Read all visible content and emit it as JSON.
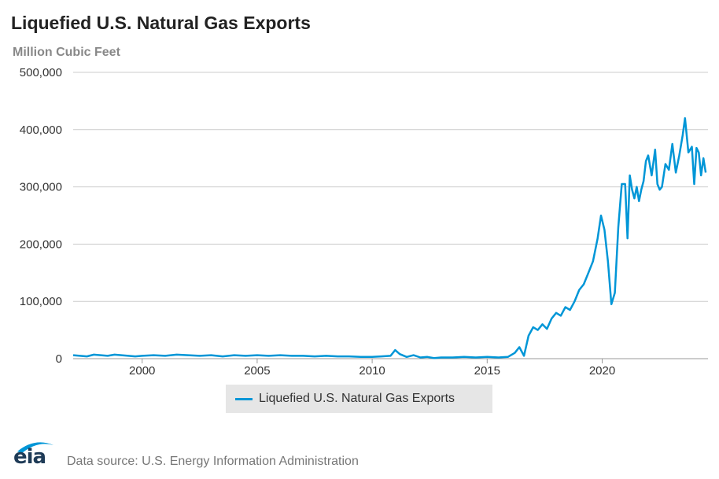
{
  "header": {
    "title": "Liquefied U.S. Natural Gas Exports",
    "subtitle": "Million Cubic Feet"
  },
  "legend": {
    "label": "Liquefied U.S. Natural Gas Exports"
  },
  "footer": {
    "logo_text": "eia",
    "source": "Data source: U.S. Energy Information Administration"
  },
  "colors": {
    "series": "#0096d7",
    "grid": "#cccccc",
    "legend_bg": "#e6e6e6"
  },
  "chart_data": {
    "type": "line",
    "title": "Liquefied U.S. Natural Gas Exports",
    "ylabel": "Million Cubic Feet",
    "xlabel": "",
    "xlim": [
      1997.0,
      2024.6
    ],
    "ylim": [
      0,
      500000
    ],
    "yticks": [
      0,
      100000,
      200000,
      300000,
      400000,
      500000
    ],
    "ytick_labels": [
      "0",
      "100,000",
      "200,000",
      "300,000",
      "400,000",
      "500,000"
    ],
    "xticks": [
      2000,
      2005,
      2010,
      2015,
      2020
    ],
    "xtick_labels": [
      "2000",
      "2005",
      "2010",
      "2015",
      "2020"
    ],
    "grid": true,
    "legend_position": "bottom-center",
    "series": [
      {
        "name": "Liquefied U.S. Natural Gas Exports",
        "x": [
          1997.0,
          1997.3,
          1997.6,
          1997.9,
          1998.2,
          1998.5,
          1998.8,
          1999.1,
          1999.4,
          1999.7,
          2000.0,
          2000.5,
          2001.0,
          2001.5,
          2002.0,
          2002.5,
          2003.0,
          2003.5,
          2004.0,
          2004.5,
          2005.0,
          2005.5,
          2006.0,
          2006.5,
          2007.0,
          2007.5,
          2008.0,
          2008.5,
          2009.0,
          2009.5,
          2010.0,
          2010.4,
          2010.8,
          2011.0,
          2011.2,
          2011.5,
          2011.8,
          2012.1,
          2012.4,
          2012.7,
          2013.0,
          2013.5,
          2014.0,
          2014.5,
          2015.0,
          2015.5,
          2015.9,
          2016.2,
          2016.4,
          2016.6,
          2016.8,
          2017.0,
          2017.2,
          2017.4,
          2017.6,
          2017.8,
          2018.0,
          2018.2,
          2018.4,
          2018.6,
          2018.8,
          2019.0,
          2019.2,
          2019.4,
          2019.6,
          2019.8,
          2019.95,
          2020.1,
          2020.25,
          2020.4,
          2020.55,
          2020.7,
          2020.85,
          2021.0,
          2021.1,
          2021.2,
          2021.3,
          2021.4,
          2021.5,
          2021.6,
          2021.7,
          2021.8,
          2021.9,
          2022.0,
          2022.15,
          2022.3,
          2022.4,
          2022.5,
          2022.6,
          2022.75,
          2022.9,
          2023.05,
          2023.2,
          2023.35,
          2023.5,
          2023.6,
          2023.75,
          2023.9,
          2024.0,
          2024.1,
          2024.2,
          2024.3,
          2024.4,
          2024.5
        ],
        "values": [
          6000,
          5000,
          4000,
          7000,
          6000,
          5000,
          7000,
          6000,
          5000,
          4000,
          5000,
          6000,
          5000,
          7000,
          6000,
          5000,
          6000,
          4000,
          6000,
          5000,
          6000,
          5000,
          6000,
          5000,
          5000,
          4000,
          5000,
          4000,
          4000,
          3000,
          3000,
          4000,
          5000,
          15000,
          8000,
          3000,
          6000,
          2000,
          3000,
          1000,
          2000,
          2000,
          3000,
          2000,
          3000,
          2000,
          3000,
          10000,
          20000,
          5000,
          40000,
          55000,
          50000,
          60000,
          52000,
          70000,
          80000,
          75000,
          90000,
          85000,
          100000,
          120000,
          130000,
          150000,
          170000,
          210000,
          250000,
          225000,
          170000,
          95000,
          115000,
          230000,
          305000,
          305000,
          210000,
          320000,
          295000,
          280000,
          300000,
          275000,
          295000,
          310000,
          345000,
          355000,
          320000,
          365000,
          305000,
          295000,
          300000,
          340000,
          330000,
          375000,
          325000,
          355000,
          390000,
          420000,
          360000,
          370000,
          305000,
          368000,
          360000,
          320000,
          350000,
          325000
        ]
      }
    ]
  }
}
